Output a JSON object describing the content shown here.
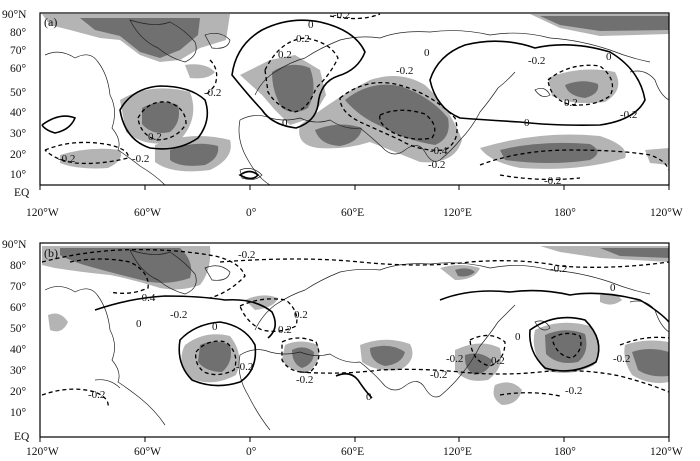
{
  "figure": {
    "y_axis_labels": [
      "90°N",
      "80°",
      "70°",
      "60°",
      "50°",
      "40°",
      "30°",
      "20°",
      "10°",
      "EQ"
    ],
    "x_axis_labels": [
      "120°W",
      "60°W",
      "0°",
      "60°E",
      "120°E",
      "180°",
      "120°W"
    ],
    "colors": {
      "shade_light": "#b4b4b4",
      "shade_dark": "#707070",
      "line": "#000000"
    },
    "panels": [
      {
        "label": "(a)",
        "contour_labels": [
          "-0.2",
          "0.2",
          "0",
          "-0.2",
          "0",
          "-0.2",
          "0",
          "-0.2",
          "0.2",
          "0.2",
          "-0.2",
          "-0.2",
          "0",
          "-0.2",
          "-0.4",
          "-0.2",
          "-0.2",
          "0.2",
          "0"
        ]
      },
      {
        "label": "(b)",
        "contour_labels": [
          "-0.2",
          "-0.2",
          "-0.4",
          "0",
          "-0.2",
          "0",
          "0.2",
          "0",
          "0.2",
          "-0.2",
          "-0.2",
          "-0.2",
          "0",
          "-0.2",
          "0.2",
          "0",
          "-0.2",
          "-0.2",
          "-0.2"
        ]
      }
    ]
  }
}
